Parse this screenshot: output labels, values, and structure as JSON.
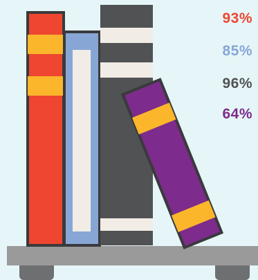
{
  "colors": {
    "background": "#e6f6f8",
    "outline": "#3a3a3c",
    "red_book": "#ee4630",
    "blue_book": "#87a6d6",
    "dark_book": "#505253",
    "purple_book": "#7d2b8c",
    "band_yellow": "#fbb62c",
    "band_cream": "#f1ede6",
    "shelf": "#9a9a9a",
    "shelf_feet": "#6e6f71"
  },
  "percentages": [
    {
      "label": "93%",
      "color": "#ee4630",
      "book": "red"
    },
    {
      "label": "85%",
      "color": "#87a6d6",
      "book": "blue"
    },
    {
      "label": "96%",
      "color": "#505253",
      "book": "dark"
    },
    {
      "label": "64%",
      "color": "#7d2b8c",
      "book": "purple"
    }
  ]
}
